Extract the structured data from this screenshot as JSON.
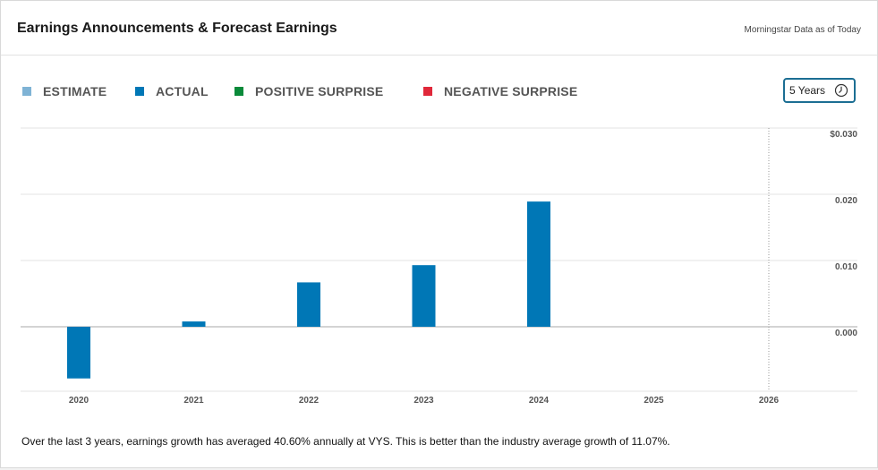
{
  "header": {
    "title": "Earnings Announcements & Forecast Earnings",
    "as_of": "Morningstar Data as of Today"
  },
  "legend": [
    {
      "label": "ESTIMATE",
      "color": "#7fb3d5"
    },
    {
      "label": "ACTUAL",
      "color": "#0077b6"
    },
    {
      "label": "POSITIVE SURPRISE",
      "color": "#0a8a3a"
    },
    {
      "label": "NEGATIVE SURPRISE",
      "color": "#e0283a"
    }
  ],
  "range_selector": {
    "label": "5 Years",
    "icon": "clock-icon"
  },
  "colors": {
    "actual": "#0077b6",
    "grid": "#e3e3e3",
    "zero_line": "#aaaaaa"
  },
  "chart_data": {
    "type": "bar",
    "title": "Earnings Announcements & Forecast Earnings",
    "categories": [
      "2020",
      "2021",
      "2022",
      "2023",
      "2024",
      "2025",
      "2026"
    ],
    "series": [
      {
        "name": "ACTUAL",
        "values": [
          -0.0078,
          0.0008,
          0.0067,
          0.0093,
          0.0189,
          null,
          null
        ]
      }
    ],
    "ylim": [
      -0.01,
      0.03
    ],
    "y_ticks": [
      {
        "value": 0.03,
        "label": "$0.030"
      },
      {
        "value": 0.02,
        "label": "0.020"
      },
      {
        "value": 0.01,
        "label": "0.010"
      },
      {
        "value": 0.0,
        "label": "0.000"
      }
    ],
    "xlabel": "",
    "ylabel": "",
    "forecast_divider_at": "2026"
  },
  "footer": {
    "note": "Over the last 3 years, earnings growth has averaged 40.60% annually at VYS. This is better than the industry average growth of 11.07%."
  }
}
